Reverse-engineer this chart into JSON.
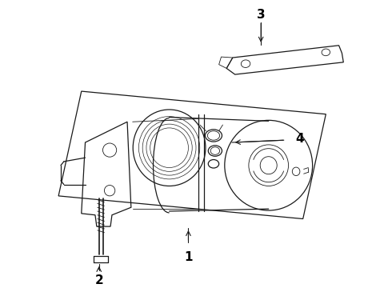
{
  "background_color": "#ffffff",
  "line_color": "#1a1a1a",
  "label_color": "#000000",
  "fig_width": 4.9,
  "fig_height": 3.6,
  "dpi": 100,
  "label_fontsize": 11,
  "label_fontweight": "bold"
}
